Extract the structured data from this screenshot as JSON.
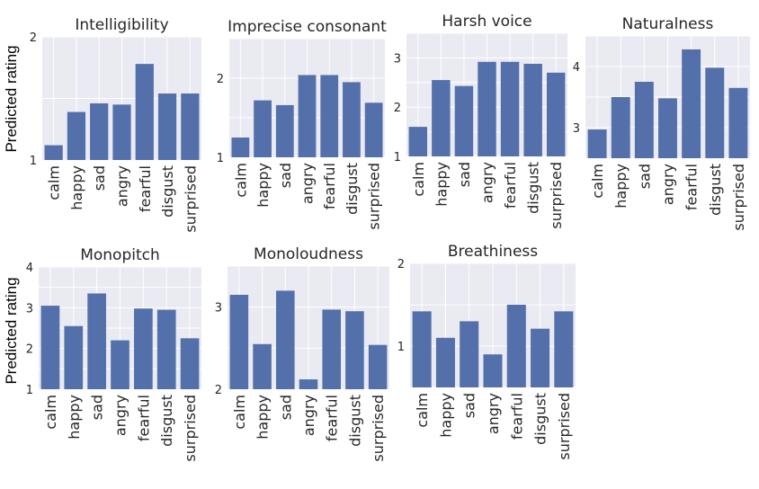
{
  "colors": {
    "bar": "#5470ab",
    "panel": "#eaeaf2",
    "grid": "#ffffff",
    "text": "#262626"
  },
  "figure": {
    "ylabel_row1": "Predicted rating",
    "ylabel_row2": "Predicted rating"
  },
  "chart_data": [
    {
      "type": "bar",
      "title": "Intelligibility",
      "categories": [
        "calm",
        "happy",
        "sad",
        "angry",
        "fearful",
        "disgust",
        "surprised"
      ],
      "values": [
        1.12,
        1.39,
        1.46,
        1.45,
        1.78,
        1.54,
        1.54
      ],
      "ylim": [
        1,
        2
      ],
      "yticks": [
        1,
        2
      ],
      "ylabel": "Predicted rating"
    },
    {
      "type": "bar",
      "title": "Imprecise consonant",
      "categories": [
        "calm",
        "happy",
        "sad",
        "angry",
        "fearful",
        "disgust",
        "surprised"
      ],
      "values": [
        1.25,
        1.72,
        1.66,
        2.04,
        2.04,
        1.95,
        1.69
      ],
      "ylim": [
        1,
        2.5
      ],
      "yticks": [
        1,
        2
      ],
      "ylabel": ""
    },
    {
      "type": "bar",
      "title": "Harsh voice",
      "categories": [
        "calm",
        "happy",
        "sad",
        "angry",
        "fearful",
        "disgust",
        "surprised"
      ],
      "values": [
        1.6,
        2.55,
        2.43,
        2.92,
        2.92,
        2.88,
        2.7
      ],
      "ylim": [
        1,
        3.5
      ],
      "yticks": [
        1,
        2,
        3
      ],
      "ylabel": ""
    },
    {
      "type": "bar",
      "title": "Naturalness",
      "categories": [
        "calm",
        "happy",
        "sad",
        "angry",
        "fearful",
        "disgust",
        "surprised"
      ],
      "values": [
        2.97,
        3.5,
        3.75,
        3.48,
        4.28,
        3.98,
        3.65
      ],
      "ylim": [
        2.5,
        4.5
      ],
      "yticks": [
        3,
        4
      ],
      "ylabel": ""
    },
    {
      "type": "bar",
      "title": "Monopitch",
      "categories": [
        "calm",
        "happy",
        "sad",
        "angry",
        "fearful",
        "disgust",
        "surprised"
      ],
      "values": [
        3.05,
        2.55,
        3.35,
        2.2,
        2.98,
        2.95,
        2.25
      ],
      "ylim": [
        1,
        4
      ],
      "yticks": [
        1,
        2,
        3,
        4
      ],
      "ylabel": "Predicted rating"
    },
    {
      "type": "bar",
      "title": "Monoloudness",
      "categories": [
        "calm",
        "happy",
        "sad",
        "angry",
        "fearful",
        "disgust",
        "surprised"
      ],
      "values": [
        3.15,
        2.55,
        3.2,
        2.12,
        2.97,
        2.95,
        2.54
      ],
      "ylim": [
        2,
        3.5
      ],
      "yticks": [
        2,
        3
      ],
      "ylabel": ""
    },
    {
      "type": "bar",
      "title": "Breathiness",
      "categories": [
        "calm",
        "happy",
        "sad",
        "angry",
        "fearful",
        "disgust",
        "surprised"
      ],
      "values": [
        1.42,
        1.1,
        1.3,
        0.9,
        1.5,
        1.21,
        1.42
      ],
      "ylim": [
        0.5,
        2
      ],
      "yticks": [
        1,
        2
      ],
      "ylabel": ""
    }
  ]
}
